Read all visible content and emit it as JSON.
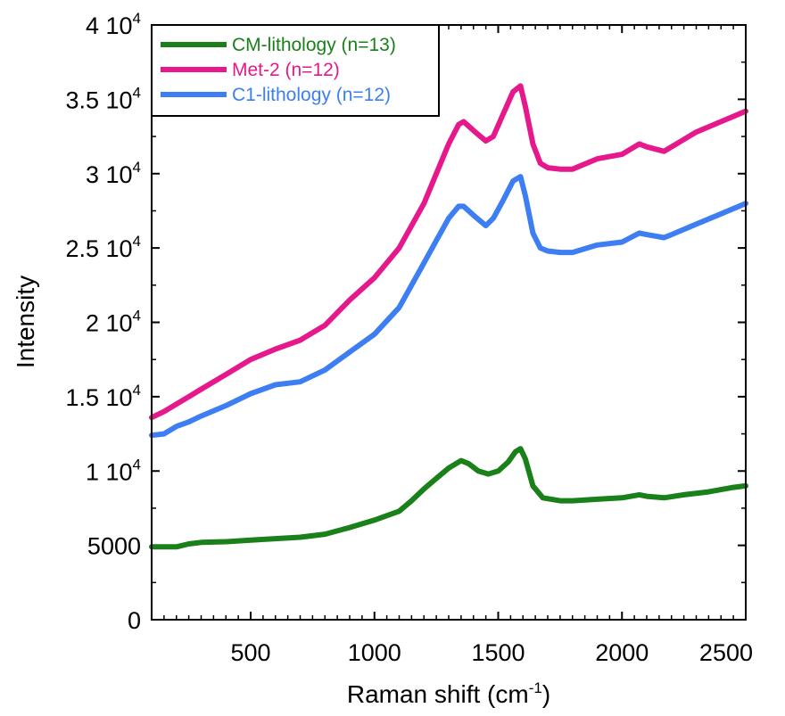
{
  "chart_data": {
    "type": "line",
    "title": "",
    "xlabel": "Raman shift (cm",
    "xlabel_sup": "-1",
    "xlabel_close": ")",
    "ylabel": "Intensity",
    "xlim": [
      100,
      2500
    ],
    "ylim": [
      0,
      40000
    ],
    "x_ticks": [
      500,
      1000,
      1500,
      2000,
      2500
    ],
    "x_tick_labels": [
      "500",
      "1000",
      "1500",
      "2000",
      "2500"
    ],
    "y_ticks": [
      0,
      5000,
      10000,
      15000,
      20000,
      25000,
      30000,
      35000,
      40000
    ],
    "y_tick_labels": [
      {
        "base": "0",
        "exp": ""
      },
      {
        "base": "5000",
        "exp": ""
      },
      {
        "base": "1 10",
        "exp": "4"
      },
      {
        "base": "1.5 10",
        "exp": "4"
      },
      {
        "base": "2 10",
        "exp": "4"
      },
      {
        "base": "2.5 10",
        "exp": "4"
      },
      {
        "base": "3 10",
        "exp": "4"
      },
      {
        "base": "3.5 10",
        "exp": "4"
      },
      {
        "base": "4 10",
        "exp": "4"
      }
    ],
    "grid": false,
    "legend_position": "top-left",
    "series": [
      {
        "name": "CM-lithology (n=13)",
        "color": "#1a801a",
        "x": [
          100,
          200,
          250,
          300,
          400,
          500,
          600,
          700,
          800,
          900,
          1000,
          1100,
          1150,
          1200,
          1250,
          1300,
          1350,
          1380,
          1420,
          1460,
          1500,
          1540,
          1570,
          1590,
          1610,
          1640,
          1680,
          1750,
          1800,
          1900,
          2000,
          2070,
          2100,
          2170,
          2250,
          2350,
          2450,
          2500
        ],
        "y": [
          4900,
          4900,
          5100,
          5200,
          5250,
          5350,
          5450,
          5550,
          5750,
          6200,
          6700,
          7300,
          8000,
          8800,
          9500,
          10200,
          10700,
          10500,
          10000,
          9800,
          10000,
          10600,
          11300,
          11500,
          10800,
          9000,
          8200,
          8000,
          8000,
          8100,
          8200,
          8400,
          8300,
          8200,
          8400,
          8600,
          8900,
          9000
        ]
      },
      {
        "name": "Met-2 (n=12)",
        "color": "#e6198c",
        "x": [
          100,
          150,
          200,
          250,
          300,
          400,
          500,
          600,
          700,
          800,
          900,
          1000,
          1100,
          1150,
          1200,
          1250,
          1300,
          1340,
          1360,
          1400,
          1450,
          1480,
          1520,
          1560,
          1590,
          1610,
          1640,
          1670,
          1700,
          1750,
          1800,
          1900,
          2000,
          2070,
          2100,
          2170,
          2200,
          2300,
          2400,
          2500
        ],
        "y": [
          13600,
          14000,
          14500,
          15000,
          15500,
          16500,
          17500,
          18200,
          18800,
          19800,
          21500,
          23000,
          25000,
          26500,
          28000,
          30000,
          32000,
          33300,
          33500,
          32900,
          32200,
          32500,
          34000,
          35500,
          35900,
          34500,
          32000,
          30700,
          30400,
          30300,
          30300,
          31000,
          31300,
          32000,
          31800,
          31500,
          31800,
          32800,
          33500,
          34200
        ]
      },
      {
        "name": "C1-lithology (n=12)",
        "color": "#3d7ff2",
        "x": [
          100,
          150,
          200,
          250,
          300,
          400,
          500,
          600,
          700,
          800,
          900,
          1000,
          1100,
          1150,
          1200,
          1250,
          1300,
          1340,
          1360,
          1400,
          1450,
          1480,
          1520,
          1560,
          1590,
          1610,
          1640,
          1670,
          1700,
          1750,
          1800,
          1900,
          2000,
          2070,
          2100,
          2170,
          2200,
          2300,
          2400,
          2500
        ],
        "y": [
          12400,
          12500,
          13000,
          13300,
          13700,
          14400,
          15200,
          15800,
          16000,
          16800,
          18000,
          19200,
          21000,
          22500,
          24000,
          25500,
          27000,
          27800,
          27800,
          27200,
          26500,
          27000,
          28200,
          29500,
          29800,
          28500,
          26000,
          25000,
          24800,
          24700,
          24700,
          25200,
          25400,
          26000,
          25900,
          25700,
          25900,
          26600,
          27300,
          28000
        ]
      }
    ]
  }
}
